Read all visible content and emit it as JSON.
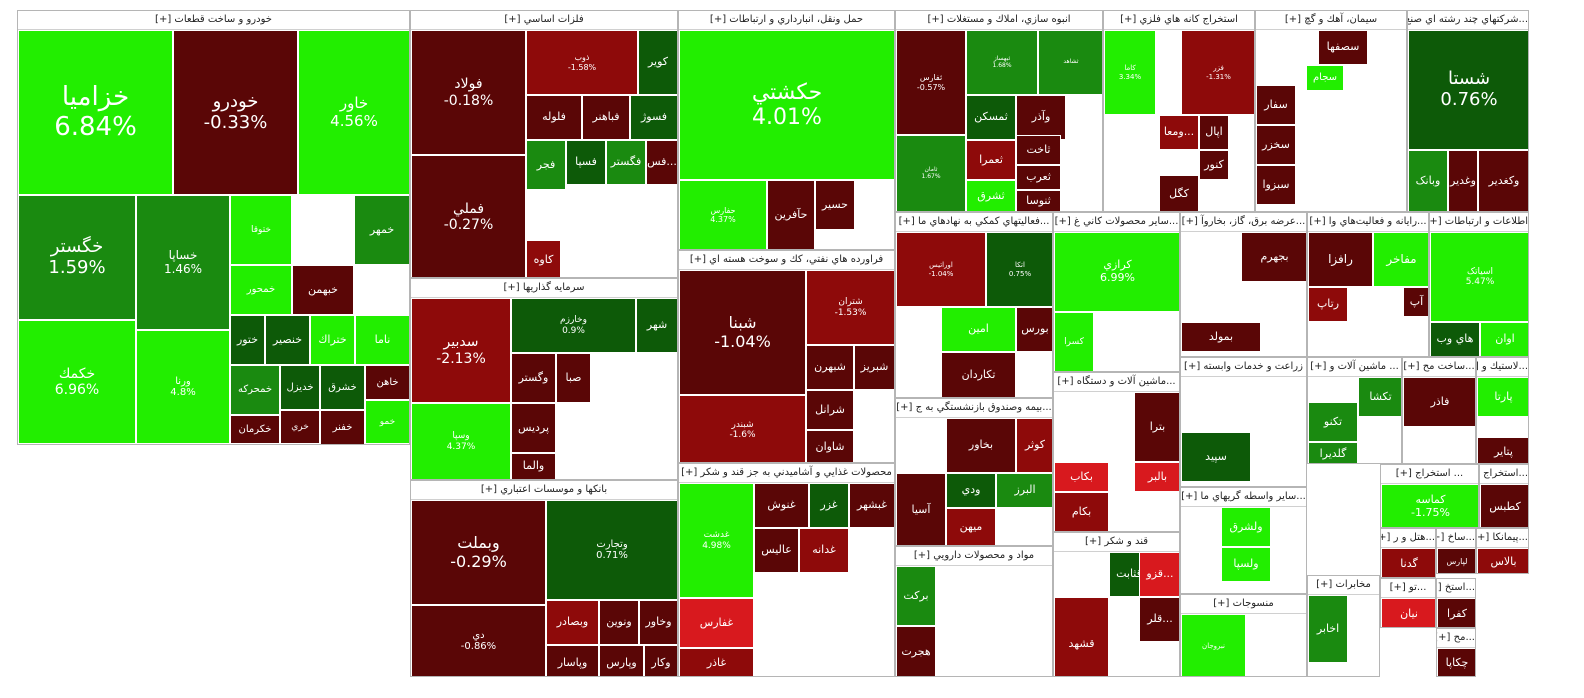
{
  "colors": {
    "strong_green": "#22ee00",
    "green": "#1a8a10",
    "dark_green": "#0d5a08",
    "dark_red": "#5a0606",
    "red": "#8e0a0a",
    "bright_red": "#d8191e"
  },
  "sectors": [
    {
      "title": "خودرو و ساخت قطعات [+]",
      "tiles": [
        {
          "name": "خزامیا",
          "pct": "6.84%"
        },
        {
          "name": "خودرو",
          "pct": "-0.33%"
        },
        {
          "name": "خاور",
          "pct": "4.56%"
        },
        {
          "name": "خگستر",
          "pct": "1.59%"
        },
        {
          "name": "خساپا",
          "pct": "1.46%"
        },
        {
          "name": "ختوقا",
          "pct": ""
        },
        {
          "name": "خمهر",
          "pct": ""
        },
        {
          "name": "خبهمن",
          "pct": ""
        },
        {
          "name": "خمحور",
          "pct": ""
        },
        {
          "name": "خکمك",
          "pct": "6.96%"
        },
        {
          "name": "ورنا",
          "pct": "4.8%"
        },
        {
          "name": "ختور",
          "pct": ""
        },
        {
          "name": "خنصیر",
          "pct": ""
        },
        {
          "name": "ختراك",
          "pct": ""
        },
        {
          "name": "ناما",
          "pct": ""
        },
        {
          "name": "خمحرکه",
          "pct": ""
        },
        {
          "name": "خدیزل",
          "pct": ""
        },
        {
          "name": "خشرق",
          "pct": ""
        },
        {
          "name": "خاهن",
          "pct": ""
        },
        {
          "name": "خفنر",
          "pct": ""
        },
        {
          "name": "خکرمان",
          "pct": ""
        },
        {
          "name": "خري",
          "pct": ""
        },
        {
          "name": "خمو",
          "pct": ""
        }
      ]
    },
    {
      "title": "فلزات اساسي [+]",
      "tiles": [
        {
          "name": "فولاد",
          "pct": "-0.18%"
        },
        {
          "name": "ذوب",
          "pct": "-1.58%"
        },
        {
          "name": "کویر",
          "pct": ""
        },
        {
          "name": "فلوله",
          "pct": ""
        },
        {
          "name": "فباهنر",
          "pct": ""
        },
        {
          "name": "فسوژ",
          "pct": ""
        },
        {
          "name": "فملي",
          "pct": "-0.27%"
        },
        {
          "name": "فجر",
          "pct": ""
        },
        {
          "name": "فسپا",
          "pct": ""
        },
        {
          "name": "فگستر",
          "pct": ""
        },
        {
          "name": "فس...",
          "pct": ""
        },
        {
          "name": "کاوه",
          "pct": ""
        }
      ]
    },
    {
      "title": "سرمايه گذاريها [+]",
      "tiles": [
        {
          "name": "سدبیر",
          "pct": "-2.13%"
        },
        {
          "name": "وخارزم",
          "pct": "0.9%"
        },
        {
          "name": "شهر",
          "pct": ""
        },
        {
          "name": "وگستر",
          "pct": ""
        },
        {
          "name": "صبا",
          "pct": ""
        },
        {
          "name": "پردیس",
          "pct": ""
        },
        {
          "name": "وسپا",
          "pct": "4.37%"
        },
        {
          "name": "والما",
          "pct": ""
        }
      ]
    },
    {
      "title": "بانکها و موسسات اعتباري [+]",
      "tiles": [
        {
          "name": "وبملت",
          "pct": "-0.29%"
        },
        {
          "name": "وتجارت",
          "pct": "0.71%"
        },
        {
          "name": "دي",
          "pct": "-0.86%"
        },
        {
          "name": "وبصادر",
          "pct": ""
        },
        {
          "name": "ونوین",
          "pct": ""
        },
        {
          "name": "وخاور",
          "pct": ""
        },
        {
          "name": "وپارس",
          "pct": ""
        },
        {
          "name": "وکار",
          "pct": ""
        },
        {
          "name": "وپاسار",
          "pct": ""
        },
        {
          "name": "ویست",
          "pct": ""
        }
      ]
    },
    {
      "title": "حمل ونقل، انبارداري و ارتباطات [+]",
      "tiles": [
        {
          "name": "حکشتي",
          "pct": "4.01%"
        },
        {
          "name": "حفارس",
          "pct": "4.37%"
        },
        {
          "name": "حآفرین",
          "pct": ""
        },
        {
          "name": "حسیر",
          "pct": ""
        }
      ]
    },
    {
      "title": "فراورده هاي نفتي، كك و سوخت هسته اي [+]",
      "tiles": [
        {
          "name": "شبنا",
          "pct": "-1.04%"
        },
        {
          "name": "شتران",
          "pct": "-1.53%"
        },
        {
          "name": "شبندر",
          "pct": "-1.6%"
        },
        {
          "name": "شبهرن",
          "pct": ""
        },
        {
          "name": "شبریز",
          "pct": ""
        },
        {
          "name": "شرانل",
          "pct": ""
        },
        {
          "name": "شاوان",
          "pct": ""
        }
      ]
    },
    {
      "title": "محصولات غذايي و آشاميدني به جز قند و شكر [+]",
      "tiles": [
        {
          "name": "غدشت",
          "pct": "4.98%"
        },
        {
          "name": "غنوش",
          "pct": ""
        },
        {
          "name": "غزر",
          "pct": ""
        },
        {
          "name": "غبشهر",
          "pct": ""
        },
        {
          "name": "عالیس",
          "pct": ""
        },
        {
          "name": "غدانه",
          "pct": ""
        },
        {
          "name": "غفارس",
          "pct": ""
        },
        {
          "name": "غاذر",
          "pct": ""
        }
      ]
    },
    {
      "title": "انبوه سازي، املاك و مستغلات [+]",
      "tiles": [
        {
          "name": "ثفارس",
          "pct": "-0.57%"
        },
        {
          "name": "ثبهساز",
          "pct": "1.68%"
        },
        {
          "name": "ثشاهد",
          "pct": ""
        },
        {
          "name": "ثامان",
          "pct": "1.67%"
        },
        {
          "name": "ثمسکن",
          "pct": ""
        },
        {
          "name": "وآذر",
          "pct": ""
        },
        {
          "name": "ثاخت",
          "pct": ""
        },
        {
          "name": "ثعمرا",
          "pct": ""
        },
        {
          "name": "ثعرب",
          "pct": ""
        },
        {
          "name": "ثشرق",
          "pct": ""
        },
        {
          "name": "ثنوسا",
          "pct": ""
        }
      ]
    },
    {
      "title": "...فعاليتهاي كمكي به نهادهاي ما [+]",
      "tiles": [
        {
          "name": "اوراتیس",
          "pct": "-1.04%"
        },
        {
          "name": "اتکا",
          "pct": "0.75%"
        },
        {
          "name": "امین",
          "pct": ""
        },
        {
          "name": "بورس",
          "pct": ""
        },
        {
          "name": "تکاردان",
          "pct": ""
        }
      ]
    },
    {
      "title": "...بيمه وصندوق بازنشستگي به ج [+]",
      "tiles": [
        {
          "name": "بخاور",
          "pct": ""
        },
        {
          "name": "کوثر",
          "pct": ""
        },
        {
          "name": "ودي",
          "pct": ""
        },
        {
          "name": "البرز",
          "pct": ""
        },
        {
          "name": "آسیا",
          "pct": ""
        },
        {
          "name": "میهن",
          "pct": ""
        }
      ]
    },
    {
      "title": "مواد و محصولات دارويي [+]",
      "tiles": [
        {
          "name": "برکت",
          "pct": ""
        },
        {
          "name": "هجرت",
          "pct": ""
        }
      ]
    },
    {
      "title": "استخراج كانه هاي فلزي [+]",
      "tiles": [
        {
          "name": "کاما",
          "pct": "3.34%"
        },
        {
          "name": "فزر",
          "pct": "-1.31%"
        },
        {
          "name": "کنور",
          "pct": ""
        },
        {
          "name": "کگل",
          "pct": ""
        },
        {
          "name": "اپال",
          "pct": ""
        },
        {
          "name": "ومعا...",
          "pct": ""
        }
      ]
    },
    {
      "title": "...ساير محصولات كاني غ [+]",
      "tiles": [
        {
          "name": "کرازي",
          "pct": "6.99%"
        },
        {
          "name": "کسرا",
          "pct": ""
        }
      ]
    },
    {
      "title": "...ماشين آلات و دستگاه [+]",
      "tiles": [
        {
          "name": "بترا",
          "pct": ""
        },
        {
          "name": "بالبر",
          "pct": ""
        },
        {
          "name": "بکاب",
          "pct": ""
        },
        {
          "name": "بکام",
          "pct": ""
        }
      ]
    },
    {
      "title": "قند و شكر [+]",
      "tiles": [
        {
          "name": "قثابت",
          "pct": ""
        },
        {
          "name": "قشهد",
          "pct": ""
        },
        {
          "name": "قلر...",
          "pct": ""
        },
        {
          "name": "قزو...",
          "pct": ""
        }
      ]
    },
    {
      "title": "سيمان، آهك و گچ [+]",
      "tiles": [
        {
          "name": "سصفها",
          "pct": ""
        },
        {
          "name": "سجام",
          "pct": ""
        },
        {
          "name": "سفار",
          "pct": ""
        },
        {
          "name": "سخزر",
          "pct": ""
        },
        {
          "name": "سبزوا",
          "pct": ""
        }
      ]
    },
    {
      "title": "...شركتهاي چند رشته اي صنع [+]",
      "tiles": [
        {
          "name": "شستا",
          "pct": "0.76%"
        },
        {
          "name": "وکغدیر",
          "pct": ""
        },
        {
          "name": "وغدیر",
          "pct": ""
        },
        {
          "name": "وبانک",
          "pct": ""
        }
      ]
    },
    {
      "title": "...عرضه برق، گاز، بخاروآ [+]",
      "tiles": [
        {
          "name": "بجهرم",
          "pct": ""
        },
        {
          "name": "بمولد",
          "pct": ""
        }
      ]
    },
    {
      "title": "...رايانه و فعاليت‌هاي وا [+]",
      "tiles": [
        {
          "name": "رافزا",
          "pct": ""
        },
        {
          "name": "رتاپ",
          "pct": ""
        },
        {
          "name": "مفاخر",
          "pct": ""
        },
        {
          "name": "آپ",
          "pct": ""
        }
      ]
    },
    {
      "title": "اطلاعات و ارتباطات [+]",
      "tiles": [
        {
          "name": "اسیاتک",
          "pct": "5.47%"
        },
        {
          "name": "اوان",
          "pct": ""
        },
        {
          "name": "هاي وب",
          "pct": ""
        }
      ]
    },
    {
      "title": "زراعت و خدمات وابسته [+]",
      "tiles": [
        {
          "name": "سپید",
          "pct": ""
        }
      ]
    },
    {
      "title": "...ساير واسطه گريهاي ما [+]",
      "tiles": [
        {
          "name": "ولشرق",
          "pct": ""
        },
        {
          "name": "ولسپا",
          "pct": ""
        }
      ]
    },
    {
      "title": "منسوجات [+]",
      "tiles": [
        {
          "name": "نبروجان",
          "pct": ""
        }
      ]
    },
    {
      "title": "... ماشين آلات و [+]",
      "tiles": [
        {
          "name": "تکشا",
          "pct": ""
        },
        {
          "name": "تکنو",
          "pct": ""
        },
        {
          "name": "گلدیرا",
          "pct": ""
        }
      ]
    },
    {
      "title": "...ساخت مح [+]",
      "tiles": [
        {
          "name": "فاذر",
          "pct": ""
        }
      ]
    },
    {
      "title": "...لاستيك و [+]",
      "tiles": [
        {
          "name": "پارتا",
          "pct": ""
        },
        {
          "name": "پتایر",
          "pct": ""
        }
      ]
    },
    {
      "title": "... استخراج [+]",
      "tiles": [
        {
          "name": "کماسه",
          "pct": "-1.75%"
        }
      ]
    },
    {
      "title": "...استخراج زغال [+]",
      "tiles": [
        {
          "name": "کطبس",
          "pct": ""
        }
      ]
    },
    {
      "title": "مخابرات [+]",
      "tiles": [
        {
          "name": "اخابر",
          "pct": ""
        }
      ]
    },
    {
      "title": "...هتل و ر [+]",
      "tiles": [
        {
          "name": "گدنا",
          "pct": ""
        },
        {
          "name": "آباد",
          "pct": ""
        },
        {
          "name": "سمگا",
          "pct": ""
        }
      ]
    },
    {
      "title": "...پیمانکا [+]",
      "tiles": [
        {
          "name": "بالاس",
          "pct": ""
        }
      ]
    },
    {
      "title": "...ساخ [+]",
      "tiles": [
        {
          "name": "لپارس",
          "pct": ""
        }
      ]
    },
    {
      "title": "...استخ [+]",
      "tiles": [
        {
          "name": "کفرا",
          "pct": ""
        }
      ]
    },
    {
      "title": "...تو [+]",
      "tiles": [
        {
          "name": "نیان",
          "pct": ""
        }
      ]
    },
    {
      "title": "...مح [+]",
      "tiles": [
        {
          "name": "چکاپا",
          "pct": ""
        }
      ]
    },
    {
      "title": "...خد [+]",
      "tiles": [
        {
          "name": "رمپنا",
          "pct": ""
        }
      ]
    }
  ]
}
